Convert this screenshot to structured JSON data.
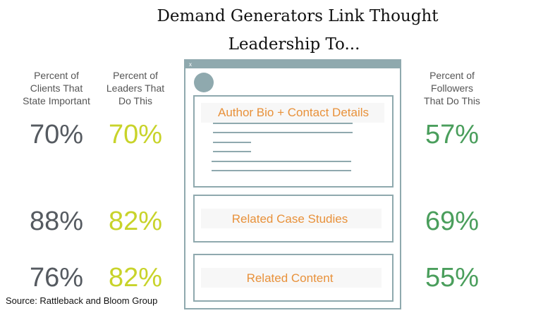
{
  "title_lines": [
    "Demand Generators Link Thought",
    "Leadership To..."
  ],
  "columns": [
    {
      "header": [
        "Percent of",
        "Clients That",
        "State Important"
      ],
      "values": [
        "70%",
        "88%",
        "76%"
      ]
    },
    {
      "header": [
        "Percent of",
        "Leaders That",
        "Do This"
      ],
      "values": [
        "70%",
        "82%",
        "82%"
      ]
    },
    {
      "header": [
        "Percent of",
        "Followers",
        "That Do This"
      ],
      "values": [
        "57%",
        "69%",
        "55%"
      ]
    }
  ],
  "window_close": "x",
  "panels": [
    "Author Bio + Contact Details",
    "Related Case Studies",
    "Related Content"
  ],
  "source": "Source: Rattleback and Bloom Group"
}
